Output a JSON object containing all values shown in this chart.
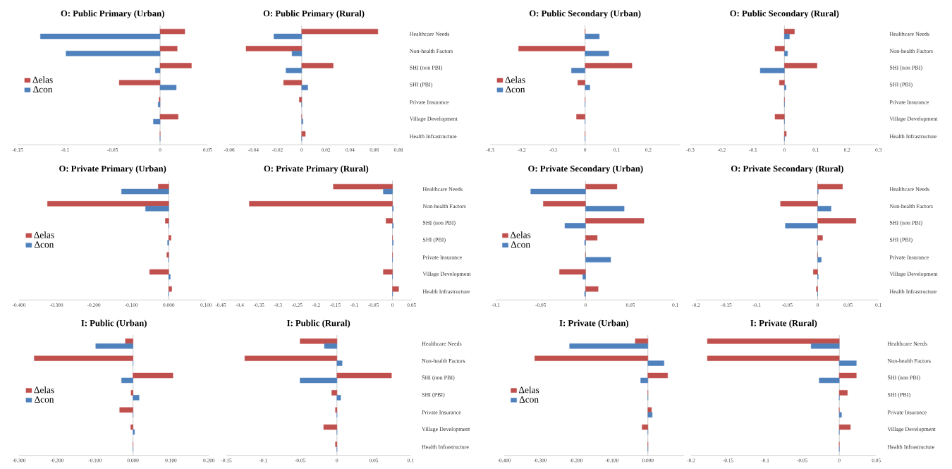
{
  "chart_data": [
    {
      "type": "bar",
      "orientation": "horizontal",
      "title": "O: Public Primary (Urban)",
      "categories": [
        null,
        null,
        null,
        null,
        null,
        null,
        null
      ],
      "series": [
        {
          "name": "Δelas",
          "color": "#c0504d",
          "values": [
            0.026,
            0.018,
            0.033,
            -0.043,
            -0.001,
            0.019,
            0
          ]
        },
        {
          "name": "Δcon",
          "color": "#4f81bd",
          "values": [
            -0.126,
            -0.099,
            -0.005,
            0.017,
            -0.002,
            -0.007,
            0
          ]
        }
      ],
      "xlim": [
        -0.15,
        0.05
      ],
      "xticks": [
        -0.15,
        -0.1,
        -0.05,
        0,
        0.05
      ],
      "legend": "left",
      "tick_labels": "x"
    },
    {
      "type": "bar",
      "orientation": "horizontal",
      "title": "O: Public Primary (Rural)",
      "categories": [
        "Healthcare Needs",
        "Non-health Factors",
        "SHI (non PBI)",
        "SHI (PBI)",
        "Private Insurance",
        "Village Development",
        "Health Infrastructure"
      ],
      "series": [
        {
          "color": "#c0504d",
          "values": [
            0.063,
            -0.046,
            0.026,
            -0.015,
            -0.002,
            0,
            0.003
          ]
        },
        {
          "color": "#4f81bd",
          "values": [
            -0.023,
            -0.008,
            -0.013,
            0.005,
            0,
            0.001,
            0
          ]
        }
      ],
      "xlim": [
        -0.06,
        0.08
      ],
      "xticks": [
        -0.06,
        -0.04,
        -0.02,
        0,
        0.02,
        0.04,
        0.06,
        0.08
      ]
    },
    {
      "type": "bar",
      "orientation": "horizontal",
      "title": "O: Public Secondary (Urban)",
      "categories": [
        null,
        null,
        null,
        null,
        null,
        null,
        null
      ],
      "series": [
        {
          "name": "Δelas",
          "color": "#c0504d",
          "values": [
            0,
            -0.21,
            0.148,
            -0.023,
            0,
            -0.027,
            0
          ]
        },
        {
          "name": "Δcon",
          "color": "#4f81bd",
          "values": [
            0.045,
            0.075,
            -0.043,
            0.015,
            0,
            0,
            0
          ]
        }
      ],
      "xlim": [
        -0.3,
        0.3
      ],
      "xticks": [
        -0.3,
        -0.2,
        -0.1,
        0,
        0.1,
        0.2
      ],
      "legend": "left",
      "tick_labels": "x"
    },
    {
      "type": "bar",
      "orientation": "horizontal",
      "title": "O: Public Secondary (Rural)",
      "categories": [
        "Healthcare Needs",
        "Non-health Factors",
        "SHI (non PBI)",
        "SHI (PBI)",
        "Private Insurance",
        "Village Development",
        "Health Infrastructure"
      ],
      "series": [
        {
          "color": "#c0504d",
          "values": [
            0.032,
            -0.03,
            0.104,
            -0.016,
            0,
            -0.03,
            0.006
          ]
        },
        {
          "color": "#4f81bd",
          "values": [
            0.016,
            0.01,
            -0.077,
            0.005,
            0,
            0,
            0
          ]
        }
      ],
      "xlim": [
        -0.3,
        0.3
      ],
      "xticks": [
        -0.3,
        -0.2,
        -0.1,
        0,
        0.1,
        0.2,
        0.3
      ]
    },
    {
      "type": "bar",
      "orientation": "horizontal",
      "title": "O: Private Primary (Urban)",
      "categories": [
        null,
        null,
        null,
        null,
        null,
        null,
        null
      ],
      "series": [
        {
          "name": "Δelas",
          "color": "#c0504d",
          "values": [
            -0.028,
            -0.324,
            -0.009,
            0.006,
            -0.005,
            -0.051,
            0.008
          ]
        },
        {
          "name": "Δcon",
          "color": "#4f81bd",
          "values": [
            -0.126,
            -0.062,
            0,
            -0.003,
            0,
            0.004,
            0
          ]
        }
      ],
      "xlim": [
        -0.4,
        0.1
      ],
      "xticks": [
        {
          "value": -0.4,
          "label": "-0.400"
        },
        {
          "value": -0.3,
          "label": "-0.300"
        },
        {
          "value": -0.2,
          "label": "-0.200"
        },
        {
          "value": -0.1,
          "label": "-0.100"
        },
        {
          "value": 0,
          "label": "0.000"
        },
        {
          "value": 0.1,
          "label": "0.100"
        }
      ],
      "legend": "left",
      "tick_labels": "x"
    },
    {
      "type": "bar",
      "orientation": "horizontal",
      "title": "O: Private Primary (Rural)",
      "categories": [
        "Healthcare Needs",
        "Non-health Factors",
        "SHI (non PBI)",
        "SHI (PBI)",
        "Private Insurance",
        "Village Development",
        "Health Infrastructure"
      ],
      "series": [
        {
          "color": "#c0504d",
          "values": [
            -0.155,
            -0.375,
            -0.017,
            0,
            0,
            -0.024,
            0.016
          ]
        },
        {
          "color": "#4f81bd",
          "values": [
            -0.024,
            0.002,
            0.002,
            0.002,
            0,
            0,
            0
          ]
        }
      ],
      "xlim": [
        -0.45,
        0.05
      ],
      "xticks": [
        -0.45,
        -0.4,
        -0.35,
        -0.3,
        -0.25,
        -0.2,
        -0.15,
        -0.1,
        -0.05,
        0,
        0.05
      ]
    },
    {
      "type": "bar",
      "orientation": "horizontal",
      "title": "O: Private Secondary (Urban)",
      "categories": [
        null,
        null,
        null,
        null,
        null,
        null,
        null
      ],
      "series": [
        {
          "name": "Δelas",
          "color": "#c0504d",
          "values": [
            0.035,
            -0.047,
            0.065,
            0.013,
            0,
            -0.029,
            0.014
          ]
        },
        {
          "name": "Δcon",
          "color": "#4f81bd",
          "values": [
            -0.061,
            0.043,
            -0.023,
            -0.001,
            0.028,
            -0.003,
            -0.001
          ]
        }
      ],
      "xlim": [
        -0.1,
        0.1
      ],
      "xticks": [
        -0.1,
        -0.05,
        0,
        0.05,
        0.1
      ],
      "legend": "left",
      "tick_labels": "x"
    },
    {
      "type": "bar",
      "orientation": "horizontal",
      "title": "O: Private Secondary (Rural)",
      "categories": [
        "Healthcare Needs",
        "Non-health Factors",
        "SHI (non PBI)",
        "SHI (PBI)",
        "Private Insurance",
        "Village Development",
        "Health Infrastructure"
      ],
      "series": [
        {
          "color": "#c0504d",
          "values": [
            0.041,
            -0.061,
            0.063,
            0.008,
            0,
            -0.007,
            -0.002
          ]
        },
        {
          "color": "#4f81bd",
          "values": [
            0.001,
            0.022,
            -0.053,
            -0.001,
            0.006,
            0.001,
            0
          ]
        }
      ],
      "xlim": [
        -0.2,
        0.1
      ],
      "xticks": [
        -0.2,
        -0.15,
        -0.1,
        -0.05,
        0,
        0.05,
        0.1
      ]
    },
    {
      "type": "bar",
      "orientation": "horizontal",
      "title": "I: Public (Urban)",
      "categories": [
        null,
        null,
        null,
        null,
        null,
        null,
        null
      ],
      "series": [
        {
          "name": "Δelas",
          "color": "#c0504d",
          "values": [
            -0.02,
            -0.26,
            0.105,
            -0.005,
            -0.035,
            -0.006,
            0
          ]
        },
        {
          "name": "Δcon",
          "color": "#4f81bd",
          "values": [
            -0.098,
            0,
            -0.03,
            0.016,
            0,
            0.004,
            0
          ]
        }
      ],
      "xlim": [
        -0.3,
        0.2
      ],
      "xticks": [
        {
          "value": -0.3,
          "label": "-0.300"
        },
        {
          "value": -0.2,
          "label": "-0.200"
        },
        {
          "value": -0.1,
          "label": "-0.100"
        },
        {
          "value": 0,
          "label": "0.000"
        },
        {
          "value": 0.1,
          "label": "0.100"
        },
        {
          "value": 0.2,
          "label": "0.200"
        }
      ],
      "legend": "left",
      "tick_labels": "x"
    },
    {
      "type": "bar",
      "orientation": "horizontal",
      "title": "I: Public (Rural)",
      "categories": [
        "Healthcare Needs",
        "Non-health Factors",
        "SHI (non PBI)",
        "SHI (PBI)",
        "Private Insurance",
        "Village Development",
        "Health Infrastructure"
      ],
      "series": [
        {
          "color": "#c0504d",
          "values": [
            -0.05,
            -0.125,
            0.074,
            -0.007,
            -0.002,
            -0.018,
            -0.002
          ]
        },
        {
          "color": "#4f81bd",
          "values": [
            -0.017,
            0.007,
            -0.05,
            0.005,
            0,
            0,
            0
          ]
        }
      ],
      "xlim": [
        -0.15,
        0.1
      ],
      "xticks": [
        -0.15,
        -0.1,
        -0.05,
        0,
        0.05,
        0.1
      ]
    },
    {
      "type": "bar",
      "orientation": "horizontal",
      "title": "I: Private (Urban)",
      "categories": [
        null,
        null,
        null,
        null,
        null,
        null,
        null
      ],
      "series": [
        {
          "name": "Δelas",
          "color": "#c0504d",
          "values": [
            -0.035,
            -0.315,
            0.055,
            0,
            0.01,
            -0.016,
            0
          ]
        },
        {
          "name": "Δcon",
          "color": "#4f81bd",
          "values": [
            -0.218,
            0.045,
            -0.02,
            0,
            0.012,
            0,
            0
          ]
        }
      ],
      "xlim": [
        -0.4,
        0.1
      ],
      "xticks": [
        {
          "value": -0.4,
          "label": "-0.400"
        },
        {
          "value": -0.3,
          "label": "-0.300"
        },
        {
          "value": -0.2,
          "label": "-0.200"
        },
        {
          "value": -0.1,
          "label": "-0.100"
        },
        {
          "value": 0,
          "label": "0.000"
        }
      ],
      "legend": "left",
      "tick_labels": "x"
    },
    {
      "type": "bar",
      "orientation": "horizontal",
      "title": "I: Private (Rural)",
      "categories": [
        "Healthcare Needs",
        "Non-health Factors",
        "SHI (non PBI)",
        "SHI (PBI)",
        "Private Insurance",
        "Village Development",
        "Health Infrastructure"
      ],
      "series": [
        {
          "color": "#c0504d",
          "values": [
            -0.178,
            -0.178,
            0.023,
            0.011,
            0,
            0.015,
            0
          ]
        },
        {
          "color": "#4f81bd",
          "values": [
            -0.038,
            0.023,
            -0.027,
            0,
            0.003,
            0,
            0
          ]
        }
      ],
      "xlim": [
        -0.2,
        0.05
      ],
      "xticks": [
        -0.2,
        -0.15,
        -0.1,
        -0.05,
        0,
        0.05
      ]
    }
  ]
}
